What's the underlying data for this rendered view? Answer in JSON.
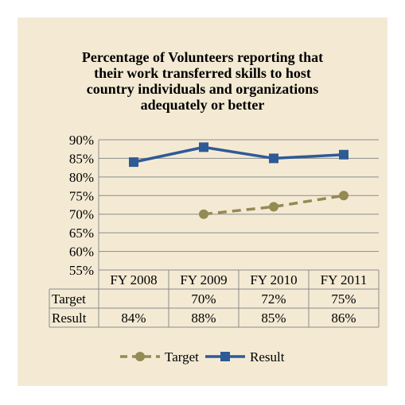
{
  "chart_data": {
    "type": "line",
    "title_lines": [
      "Percentage of Volunteers reporting that",
      "their work transferred skills to host",
      "country individuals and organizations",
      "adequately or better"
    ],
    "categories": [
      "FY 2008",
      "FY 2009",
      "FY 2010",
      "FY 2011"
    ],
    "series": [
      {
        "name": "Target",
        "values": [
          null,
          70,
          72,
          75
        ],
        "labels": [
          "",
          "70%",
          "72%",
          "75%"
        ],
        "color": "#948a54",
        "style": "dashed",
        "marker": "circle"
      },
      {
        "name": "Result",
        "values": [
          84,
          88,
          85,
          86
        ],
        "labels": [
          "84%",
          "88%",
          "85%",
          "86%"
        ],
        "color": "#2e5a96",
        "style": "solid",
        "marker": "square"
      }
    ],
    "yticks": [
      "90%",
      "85%",
      "80%",
      "75%",
      "70%",
      "65%",
      "60%",
      "55%"
    ],
    "ylim": [
      55,
      90
    ],
    "grid": true,
    "legend_position": "bottom",
    "data_table": true
  }
}
